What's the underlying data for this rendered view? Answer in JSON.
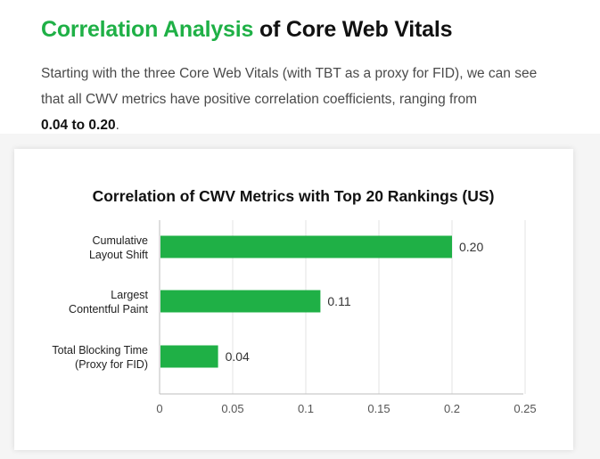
{
  "heading": {
    "accent": "Correlation Analysis",
    "rest": "of Core Web Vitals"
  },
  "intro": {
    "text": "Starting with the three Core Web Vitals (with TBT as a proxy for FID), we can see that all CWV metrics have positive correlation coefficients, ranging from",
    "bold": "0.04 to 0.20",
    "suffix": "."
  },
  "chart_data": {
    "type": "bar",
    "orientation": "horizontal",
    "title": "Correlation of CWV Metrics with Top 20 Rankings (US)",
    "categories": [
      [
        "Cumulative",
        "Layout Shift"
      ],
      [
        "Largest",
        "Contentful Paint"
      ],
      [
        "Total Blocking Time",
        "(Proxy for FID)"
      ]
    ],
    "values": [
      0.2,
      0.11,
      0.04
    ],
    "data_labels": [
      "0.20",
      "0.11",
      "0.04"
    ],
    "xlim": [
      0,
      0.25
    ],
    "xticks": [
      0,
      0.05,
      0.1,
      0.15,
      0.2,
      0.25
    ],
    "xtick_labels": [
      "0",
      "0.05",
      "0.1",
      "0.15",
      "0.2",
      "0.25"
    ],
    "grid": "vertical",
    "bar_color": "#1fb046"
  }
}
